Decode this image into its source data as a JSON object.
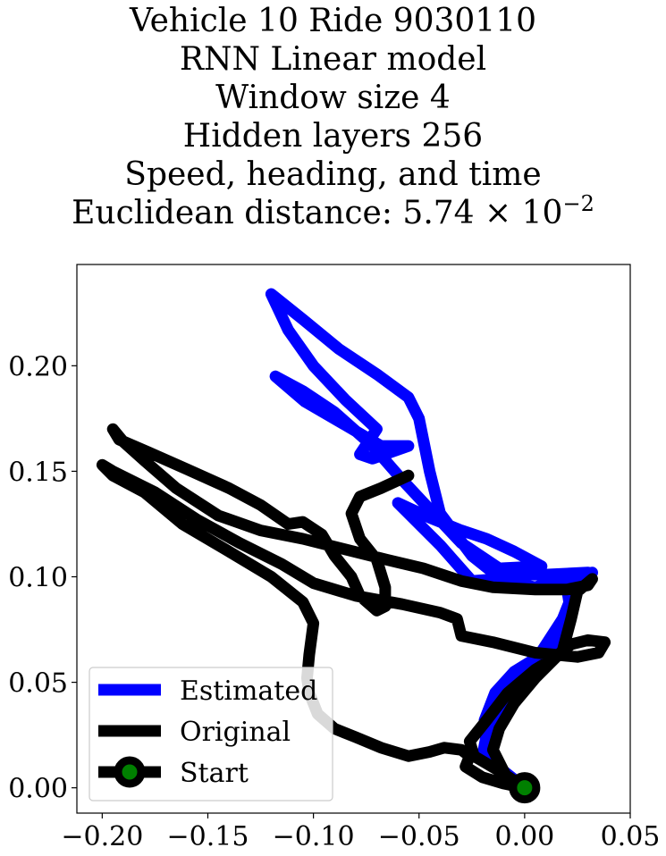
{
  "title": {
    "line1": "Vehicle 10 Ride 9030110",
    "line2": "RNN Linear model",
    "line3": "Window size 4",
    "line4": "Hidden layers 256",
    "line5": "Speed, heading, and time",
    "line6_prefix": "Euclidean distance: 5.74 × 10",
    "line6_exponent": "−2"
  },
  "chart_data": {
    "type": "line",
    "title": "Vehicle 10 Ride 9030110 / RNN Linear model / Window size 4 / Hidden layers 256 / Speed, heading, and time / Euclidean distance: 5.74 × 10^-2",
    "xlabel": "",
    "ylabel": "",
    "xlim": [
      -0.212,
      0.05
    ],
    "ylim": [
      -0.012,
      0.248
    ],
    "grid": false,
    "legend_placement": "lower-left",
    "x_ticks": [
      -0.2,
      -0.15,
      -0.1,
      -0.05,
      0.0,
      0.05
    ],
    "x_tick_labels": [
      "−0.20",
      "−0.15",
      "−0.10",
      "−0.05",
      "0.00",
      "0.05"
    ],
    "y_ticks": [
      0.0,
      0.05,
      0.1,
      0.15,
      0.2
    ],
    "y_tick_labels": [
      "0.00",
      "0.05",
      "0.10",
      "0.15",
      "0.20"
    ],
    "series": [
      {
        "name": "Estimated",
        "color": "#0000ff",
        "points": [
          [
            0.0,
            0.0
          ],
          [
            -0.01,
            0.008
          ],
          [
            -0.018,
            0.018
          ],
          [
            -0.019,
            0.032
          ],
          [
            -0.014,
            0.045
          ],
          [
            -0.005,
            0.055
          ],
          [
            0.008,
            0.063
          ],
          [
            0.018,
            0.07
          ],
          [
            0.022,
            0.082
          ],
          [
            0.02,
            0.095
          ],
          [
            0.028,
            0.1
          ],
          [
            0.03,
            0.102
          ],
          [
            0.01,
            0.101
          ],
          [
            -0.005,
            0.101
          ],
          [
            -0.012,
            0.099
          ],
          [
            -0.025,
            0.098
          ],
          [
            -0.04,
            0.115
          ],
          [
            -0.055,
            0.13
          ],
          [
            -0.06,
            0.135
          ],
          [
            -0.045,
            0.128
          ],
          [
            -0.03,
            0.122
          ],
          [
            -0.018,
            0.118
          ],
          [
            -0.005,
            0.112
          ],
          [
            0.008,
            0.105
          ],
          [
            -0.012,
            0.104
          ],
          [
            -0.03,
            0.116
          ],
          [
            -0.045,
            0.132
          ],
          [
            -0.058,
            0.146
          ],
          [
            -0.072,
            0.162
          ],
          [
            -0.09,
            0.178
          ],
          [
            -0.105,
            0.188
          ],
          [
            -0.118,
            0.195
          ],
          [
            -0.104,
            0.183
          ],
          [
            -0.085,
            0.172
          ],
          [
            -0.068,
            0.162
          ],
          [
            -0.055,
            0.162
          ],
          [
            -0.072,
            0.156
          ],
          [
            -0.078,
            0.158
          ],
          [
            -0.07,
            0.17
          ],
          [
            -0.085,
            0.184
          ],
          [
            -0.1,
            0.2
          ],
          [
            -0.112,
            0.217
          ],
          [
            -0.12,
            0.234
          ],
          [
            -0.105,
            0.222
          ],
          [
            -0.088,
            0.208
          ],
          [
            -0.07,
            0.196
          ],
          [
            -0.055,
            0.185
          ],
          [
            -0.05,
            0.175
          ],
          [
            -0.045,
            0.15
          ],
          [
            -0.04,
            0.13
          ],
          [
            -0.025,
            0.11
          ],
          [
            -0.01,
            0.098
          ],
          [
            0.005,
            0.095
          ],
          [
            0.02,
            0.1
          ],
          [
            0.032,
            0.102
          ],
          [
            0.03,
            0.098
          ],
          [
            0.022,
            0.09
          ],
          [
            0.018,
            0.08
          ],
          [
            0.005,
            0.06
          ],
          [
            -0.01,
            0.04
          ],
          [
            -0.018,
            0.025
          ],
          [
            -0.02,
            0.015
          ],
          [
            -0.012,
            0.008
          ],
          [
            0.0,
            0.0
          ]
        ]
      },
      {
        "name": "Original",
        "color": "#000000",
        "points": [
          [
            0.0,
            0.0
          ],
          [
            -0.012,
            0.008
          ],
          [
            -0.024,
            0.015
          ],
          [
            -0.026,
            0.022
          ],
          [
            -0.018,
            0.032
          ],
          [
            -0.008,
            0.045
          ],
          [
            0.005,
            0.056
          ],
          [
            0.015,
            0.062
          ],
          [
            0.022,
            0.068
          ],
          [
            0.03,
            0.07
          ],
          [
            0.038,
            0.069
          ],
          [
            0.035,
            0.064
          ],
          [
            0.025,
            0.062
          ],
          [
            0.005,
            0.064
          ],
          [
            -0.015,
            0.069
          ],
          [
            -0.03,
            0.072
          ],
          [
            -0.032,
            0.08
          ],
          [
            -0.04,
            0.083
          ],
          [
            -0.058,
            0.087
          ],
          [
            -0.08,
            0.091
          ],
          [
            -0.1,
            0.097
          ],
          [
            -0.115,
            0.106
          ],
          [
            -0.135,
            0.116
          ],
          [
            -0.155,
            0.127
          ],
          [
            -0.175,
            0.14
          ],
          [
            -0.195,
            0.15
          ],
          [
            -0.2,
            0.153
          ],
          [
            -0.195,
            0.148
          ],
          [
            -0.18,
            0.14
          ],
          [
            -0.162,
            0.125
          ],
          [
            -0.14,
            0.112
          ],
          [
            -0.12,
            0.1
          ],
          [
            -0.105,
            0.088
          ],
          [
            -0.1,
            0.078
          ],
          [
            -0.102,
            0.063
          ],
          [
            -0.103,
            0.052
          ],
          [
            -0.102,
            0.045
          ],
          [
            -0.098,
            0.035
          ],
          [
            -0.09,
            0.028
          ],
          [
            -0.08,
            0.024
          ],
          [
            -0.068,
            0.019
          ],
          [
            -0.055,
            0.015
          ],
          [
            -0.045,
            0.017
          ],
          [
            -0.038,
            0.019
          ],
          [
            -0.03,
            0.018
          ],
          [
            -0.026,
            0.015
          ],
          [
            -0.028,
            0.01
          ],
          [
            -0.02,
            0.005
          ],
          [
            -0.01,
            0.002
          ],
          [
            0.0,
            0.0
          ],
          [
            -0.008,
            0.004
          ],
          [
            -0.015,
            0.018
          ],
          [
            -0.012,
            0.028
          ],
          [
            -0.005,
            0.04
          ],
          [
            0.005,
            0.052
          ],
          [
            0.018,
            0.065
          ],
          [
            0.022,
            0.08
          ],
          [
            0.025,
            0.093
          ],
          [
            0.032,
            0.099
          ],
          [
            0.03,
            0.096
          ],
          [
            0.02,
            0.094
          ],
          [
            0.005,
            0.094
          ],
          [
            -0.015,
            0.095
          ],
          [
            -0.03,
            0.098
          ],
          [
            -0.048,
            0.104
          ],
          [
            -0.065,
            0.108
          ],
          [
            -0.085,
            0.113
          ],
          [
            -0.105,
            0.118
          ],
          [
            -0.125,
            0.122
          ],
          [
            -0.145,
            0.129
          ],
          [
            -0.165,
            0.142
          ],
          [
            -0.18,
            0.155
          ],
          [
            -0.19,
            0.164
          ],
          [
            -0.195,
            0.17
          ],
          [
            -0.192,
            0.165
          ],
          [
            -0.178,
            0.159
          ],
          [
            -0.16,
            0.151
          ],
          [
            -0.14,
            0.142
          ],
          [
            -0.125,
            0.134
          ],
          [
            -0.112,
            0.125
          ],
          [
            -0.105,
            0.126
          ],
          [
            -0.096,
            0.12
          ],
          [
            -0.09,
            0.11
          ],
          [
            -0.082,
            0.1
          ],
          [
            -0.078,
            0.091
          ],
          [
            -0.07,
            0.084
          ],
          [
            -0.066,
            0.086
          ],
          [
            -0.066,
            0.095
          ],
          [
            -0.07,
            0.108
          ],
          [
            -0.078,
            0.118
          ],
          [
            -0.082,
            0.13
          ],
          [
            -0.078,
            0.138
          ],
          [
            -0.068,
            0.142
          ],
          [
            -0.055,
            0.148
          ]
        ]
      }
    ],
    "start": {
      "name": "Start",
      "x": 0.0,
      "y": 0.0,
      "fill": "#008000",
      "edge": "#000000"
    },
    "legend": [
      {
        "label": "Estimated",
        "color": "#0000ff",
        "marker": false
      },
      {
        "label": "Original",
        "color": "#000000",
        "marker": false
      },
      {
        "label": "Start",
        "color": "#000000",
        "marker": true,
        "marker_fill": "#008000"
      }
    ]
  }
}
